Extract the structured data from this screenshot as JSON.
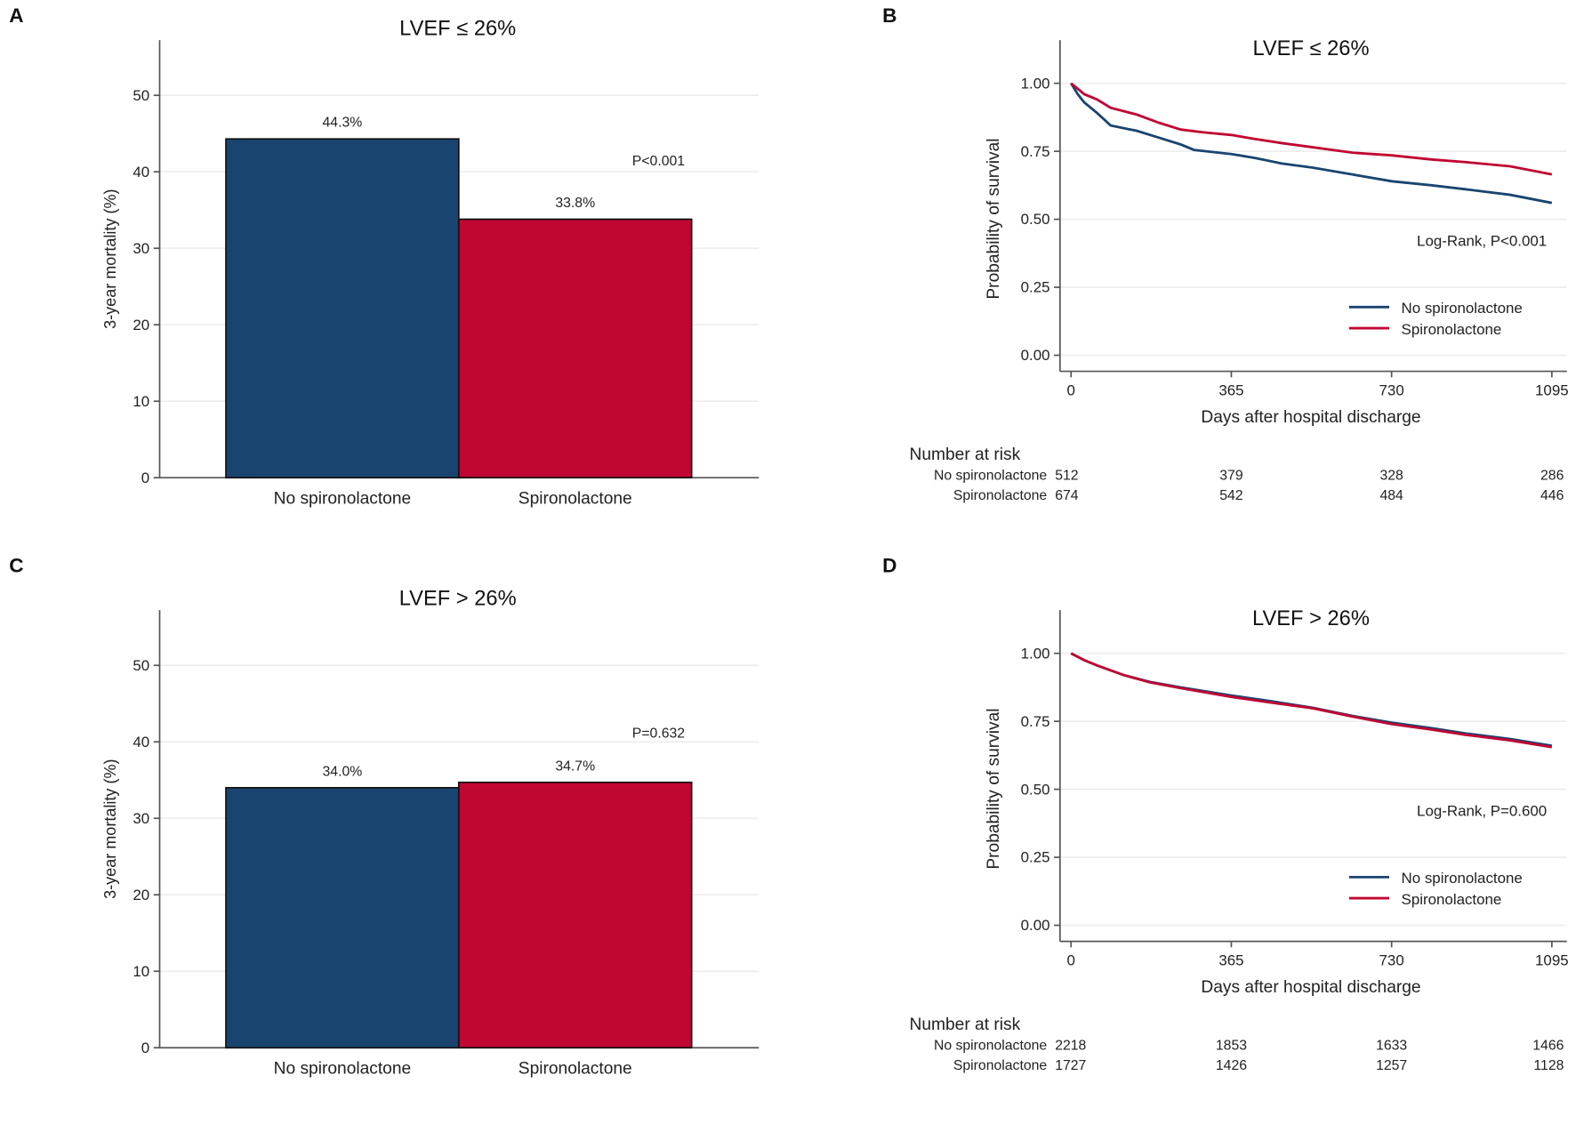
{
  "colors": {
    "no_spiro": "#1a4470",
    "spiro": "#c00632"
  },
  "chart_data": [
    {
      "panel": "A",
      "type": "bar",
      "title": "LVEF ≤ 26%",
      "ylabel": "3-year mortality (%)",
      "xlabel": "",
      "ylim": [
        0,
        57
      ],
      "yticks": [
        0,
        10,
        20,
        30,
        40,
        50
      ],
      "categories": [
        "No spironolactone",
        "Spironolactone"
      ],
      "values": [
        44.3,
        33.8
      ],
      "value_labels": [
        "44.3%",
        "33.8%"
      ],
      "annotation": "P<0.001",
      "grid": true
    },
    {
      "panel": "B",
      "type": "line",
      "title": "LVEF ≤ 26%",
      "ylabel": "Probability of survival",
      "xlabel": "Days after hospital discharge",
      "xlim": [
        0,
        1095
      ],
      "ylim": [
        0,
        1
      ],
      "xticks": [
        0,
        365,
        730,
        1095
      ],
      "yticks": [
        "0.00",
        "0.25",
        "0.50",
        "0.75",
        "1.00"
      ],
      "annotation": "Log-Rank, P<0.001",
      "legend_position": "bottom-right",
      "grid": true,
      "series": [
        {
          "name": "No spironolactone",
          "x": [
            0,
            15,
            30,
            60,
            90,
            150,
            200,
            250,
            280,
            365,
            420,
            480,
            550,
            640,
            730,
            820,
            900,
            1000,
            1095
          ],
          "y": [
            1.0,
            0.96,
            0.93,
            0.89,
            0.845,
            0.825,
            0.8,
            0.775,
            0.755,
            0.74,
            0.725,
            0.705,
            0.69,
            0.665,
            0.64,
            0.625,
            0.61,
            0.59,
            0.56
          ]
        },
        {
          "name": "Spironolactone",
          "x": [
            0,
            15,
            30,
            60,
            90,
            150,
            200,
            250,
            300,
            365,
            420,
            480,
            550,
            640,
            730,
            820,
            900,
            1000,
            1095
          ],
          "y": [
            1.0,
            0.98,
            0.96,
            0.94,
            0.91,
            0.885,
            0.855,
            0.83,
            0.82,
            0.81,
            0.795,
            0.78,
            0.765,
            0.745,
            0.735,
            0.72,
            0.71,
            0.695,
            0.665
          ]
        }
      ],
      "risk_table": {
        "title": "Number at risk",
        "rows": [
          {
            "name": "No spironolactone",
            "values": [
              "512",
              "379",
              "328",
              "286"
            ]
          },
          {
            "name": "Spironolactone",
            "values": [
              "674",
              "542",
              "484",
              "446"
            ]
          }
        ]
      }
    },
    {
      "panel": "C",
      "type": "bar",
      "title": "LVEF > 26%",
      "ylabel": "3-year mortality (%)",
      "xlabel": "",
      "ylim": [
        0,
        57
      ],
      "yticks": [
        0,
        10,
        20,
        30,
        40,
        50
      ],
      "categories": [
        "No spironolactone",
        "Spironolactone"
      ],
      "values": [
        34.0,
        34.7
      ],
      "value_labels": [
        "34.0%",
        "34.7%"
      ],
      "annotation": "P=0.632",
      "grid": true
    },
    {
      "panel": "D",
      "type": "line",
      "title": "LVEF > 26%",
      "ylabel": "Probability of survival",
      "xlabel": "Days after hospital discharge",
      "xlim": [
        0,
        1095
      ],
      "ylim": [
        0,
        1
      ],
      "xticks": [
        0,
        365,
        730,
        1095
      ],
      "yticks": [
        "0.00",
        "0.25",
        "0.50",
        "0.75",
        "1.00"
      ],
      "annotation": "Log-Rank, P=0.600",
      "legend_position": "bottom-right",
      "grid": true,
      "series": [
        {
          "name": "No spironolactone",
          "x": [
            0,
            30,
            60,
            120,
            180,
            250,
            365,
            450,
            550,
            640,
            730,
            820,
            900,
            1000,
            1095
          ],
          "y": [
            1.0,
            0.975,
            0.955,
            0.92,
            0.895,
            0.875,
            0.845,
            0.825,
            0.8,
            0.77,
            0.745,
            0.725,
            0.705,
            0.685,
            0.66
          ]
        },
        {
          "name": "Spironolactone",
          "x": [
            0,
            30,
            60,
            120,
            180,
            250,
            365,
            450,
            550,
            640,
            730,
            820,
            900,
            1000,
            1095
          ],
          "y": [
            1.0,
            0.975,
            0.955,
            0.92,
            0.893,
            0.872,
            0.84,
            0.82,
            0.798,
            0.768,
            0.74,
            0.72,
            0.7,
            0.68,
            0.655
          ]
        }
      ],
      "risk_table": {
        "title": "Number at risk",
        "rows": [
          {
            "name": "No spironolactone",
            "values": [
              "2218",
              "1853",
              "1633",
              "1466"
            ]
          },
          {
            "name": "Spironolactone",
            "values": [
              "1727",
              "1426",
              "1257",
              "1128"
            ]
          }
        ]
      }
    }
  ]
}
